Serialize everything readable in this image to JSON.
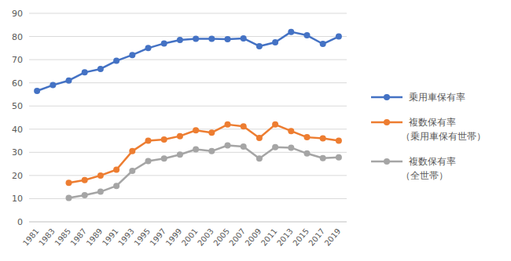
{
  "chart_data": {
    "type": "line",
    "categories": [
      "1981",
      "1983",
      "1985",
      "1987",
      "1989",
      "1991",
      "1993",
      "1995",
      "1997",
      "1999",
      "2001",
      "2003",
      "2005",
      "2007",
      "2009",
      "2011",
      "2013",
      "2015",
      "2017",
      "2019"
    ],
    "series": [
      {
        "name": "乗用車保有率",
        "color": "#4472c4",
        "marker": "circle",
        "values": [
          56.5,
          59,
          61,
          64.5,
          66,
          69.5,
          72,
          75,
          77,
          78.5,
          79,
          79,
          78.8,
          79.2,
          75.8,
          77.5,
          82,
          80.5,
          76.8,
          80
        ]
      },
      {
        "name": "複数保有率（乗用車保有世帯）",
        "color": "#ed7d31",
        "marker": "circle",
        "values": [
          null,
          null,
          16.8,
          18,
          20,
          22.5,
          30.5,
          35,
          35.5,
          37,
          39.5,
          38.5,
          42,
          41.2,
          36.2,
          42,
          39.2,
          36.5,
          36,
          35
        ]
      },
      {
        "name": "複数保有率（全世帯）",
        "color": "#a5a5a5",
        "marker": "circle",
        "values": [
          null,
          null,
          10.3,
          11.5,
          13,
          15.5,
          22,
          26.2,
          27.3,
          29,
          31.3,
          30.5,
          33,
          32.5,
          27.3,
          32.2,
          32,
          29.5,
          27.5,
          27.8
        ]
      }
    ],
    "ylim": [
      0,
      90
    ],
    "yticks": [
      0,
      10,
      20,
      30,
      40,
      50,
      60,
      70,
      80,
      90
    ],
    "grid": true,
    "legend": "right"
  }
}
